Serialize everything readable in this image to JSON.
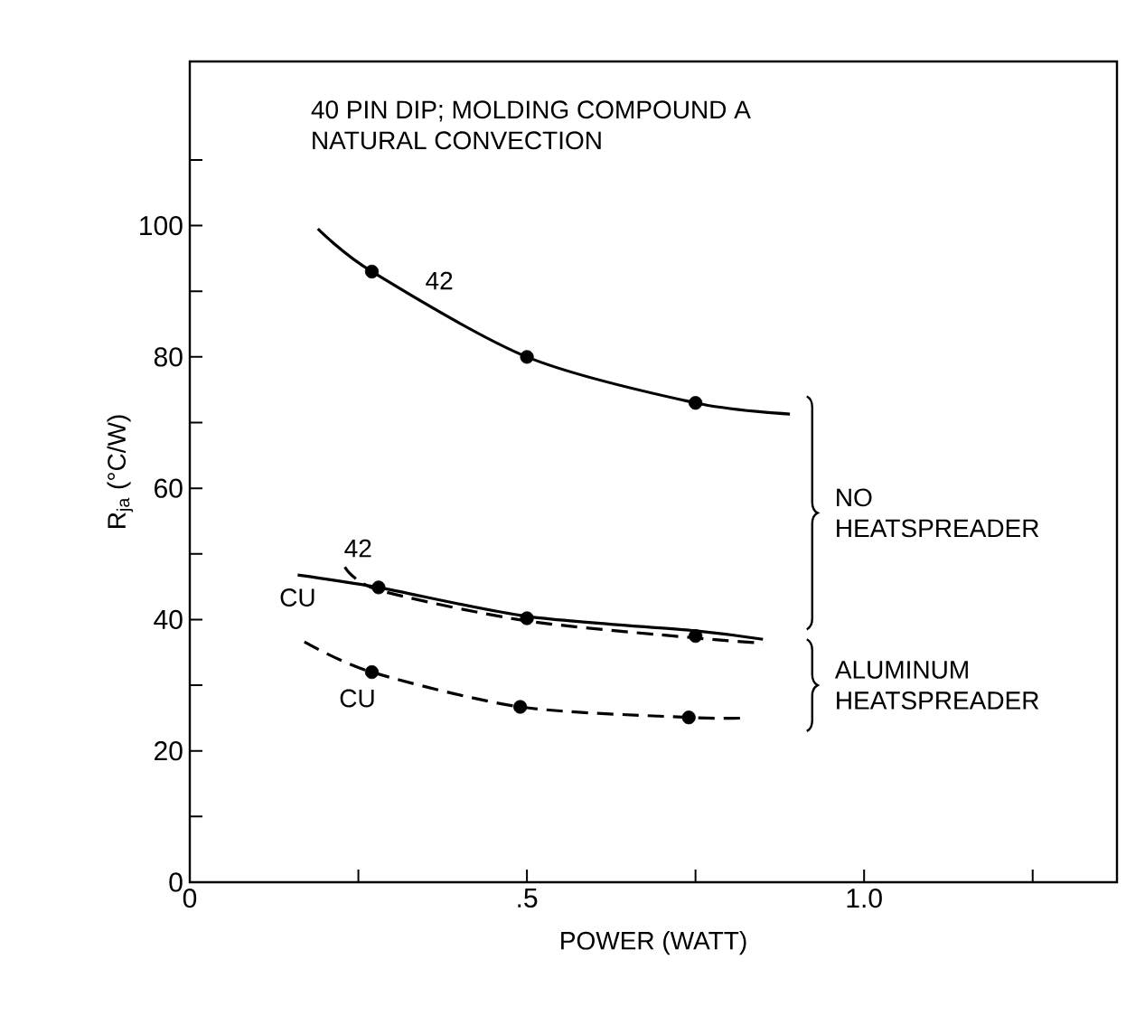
{
  "chart_data": {
    "type": "line",
    "title": "40 PIN DIP; MOLDING COMPOUND A",
    "subtitle": "NATURAL CONVECTION",
    "xlabel": "POWER (WATT)",
    "ylabel": "R$_{ja}$  (°C/W)",
    "xlim": [
      0,
      1.375
    ],
    "ylim": [
      0,
      125
    ],
    "xticks": [
      0,
      {
        "value": 0.25,
        "label": null
      },
      {
        "value": 0.5,
        "label": ".5"
      },
      {
        "value": 0.75,
        "label": null
      },
      {
        "value": 1.0,
        "label": "1.0"
      },
      {
        "value": 1.25,
        "label": null
      }
    ],
    "yticks": [
      0,
      {
        "value": 10,
        "label": null
      },
      20,
      {
        "value": 30,
        "label": null
      },
      40,
      {
        "value": 50,
        "label": null
      },
      60,
      {
        "value": 70,
        "label": null
      },
      80,
      {
        "value": 90,
        "label": null
      },
      100,
      {
        "value": 110,
        "label": null
      }
    ],
    "grid": false,
    "series": [
      {
        "name": "42",
        "color": "#000000",
        "line_style": "solid",
        "marker": "none",
        "x": [
          0.19,
          0.27,
          0.5,
          0.75,
          0.89
        ],
        "values": [
          99.5,
          93,
          80,
          73,
          71.3
        ]
      },
      {
        "name": "CU",
        "color": "#000000",
        "line_style": "solid",
        "marker": "none",
        "x": [
          0.16,
          0.28,
          0.5,
          0.75,
          0.85
        ],
        "values": [
          46.8,
          44.9,
          40.5,
          38.3,
          37
        ]
      },
      {
        "name": "42",
        "color": "#000000",
        "line_style": "dashed",
        "marker": "none",
        "x": [
          0.23,
          0.28,
          0.5,
          0.75,
          0.85
        ],
        "values": [
          48,
          44.5,
          39.8,
          37.2,
          36.4
        ]
      },
      {
        "name": "CU",
        "color": "#000000",
        "line_style": "dashed",
        "marker": "none",
        "x": [
          0.17,
          0.27,
          0.49,
          0.74,
          0.82
        ],
        "values": [
          36.6,
          32,
          26.7,
          25.1,
          25
        ]
      },
      {
        "type": "scatter",
        "color": "#000000",
        "marker": "circle",
        "x": [
          0.27,
          0.5,
          0.75,
          0.28,
          0.5,
          0.75,
          0.27,
          0.49,
          0.74
        ],
        "values": [
          93,
          80,
          73,
          44.9,
          40.2,
          37.5,
          32,
          26.7,
          25.1
        ]
      }
    ],
    "annotations": [
      "NO HEATSPREADER",
      "ALUMINUM HEATSPREADER"
    ]
  }
}
